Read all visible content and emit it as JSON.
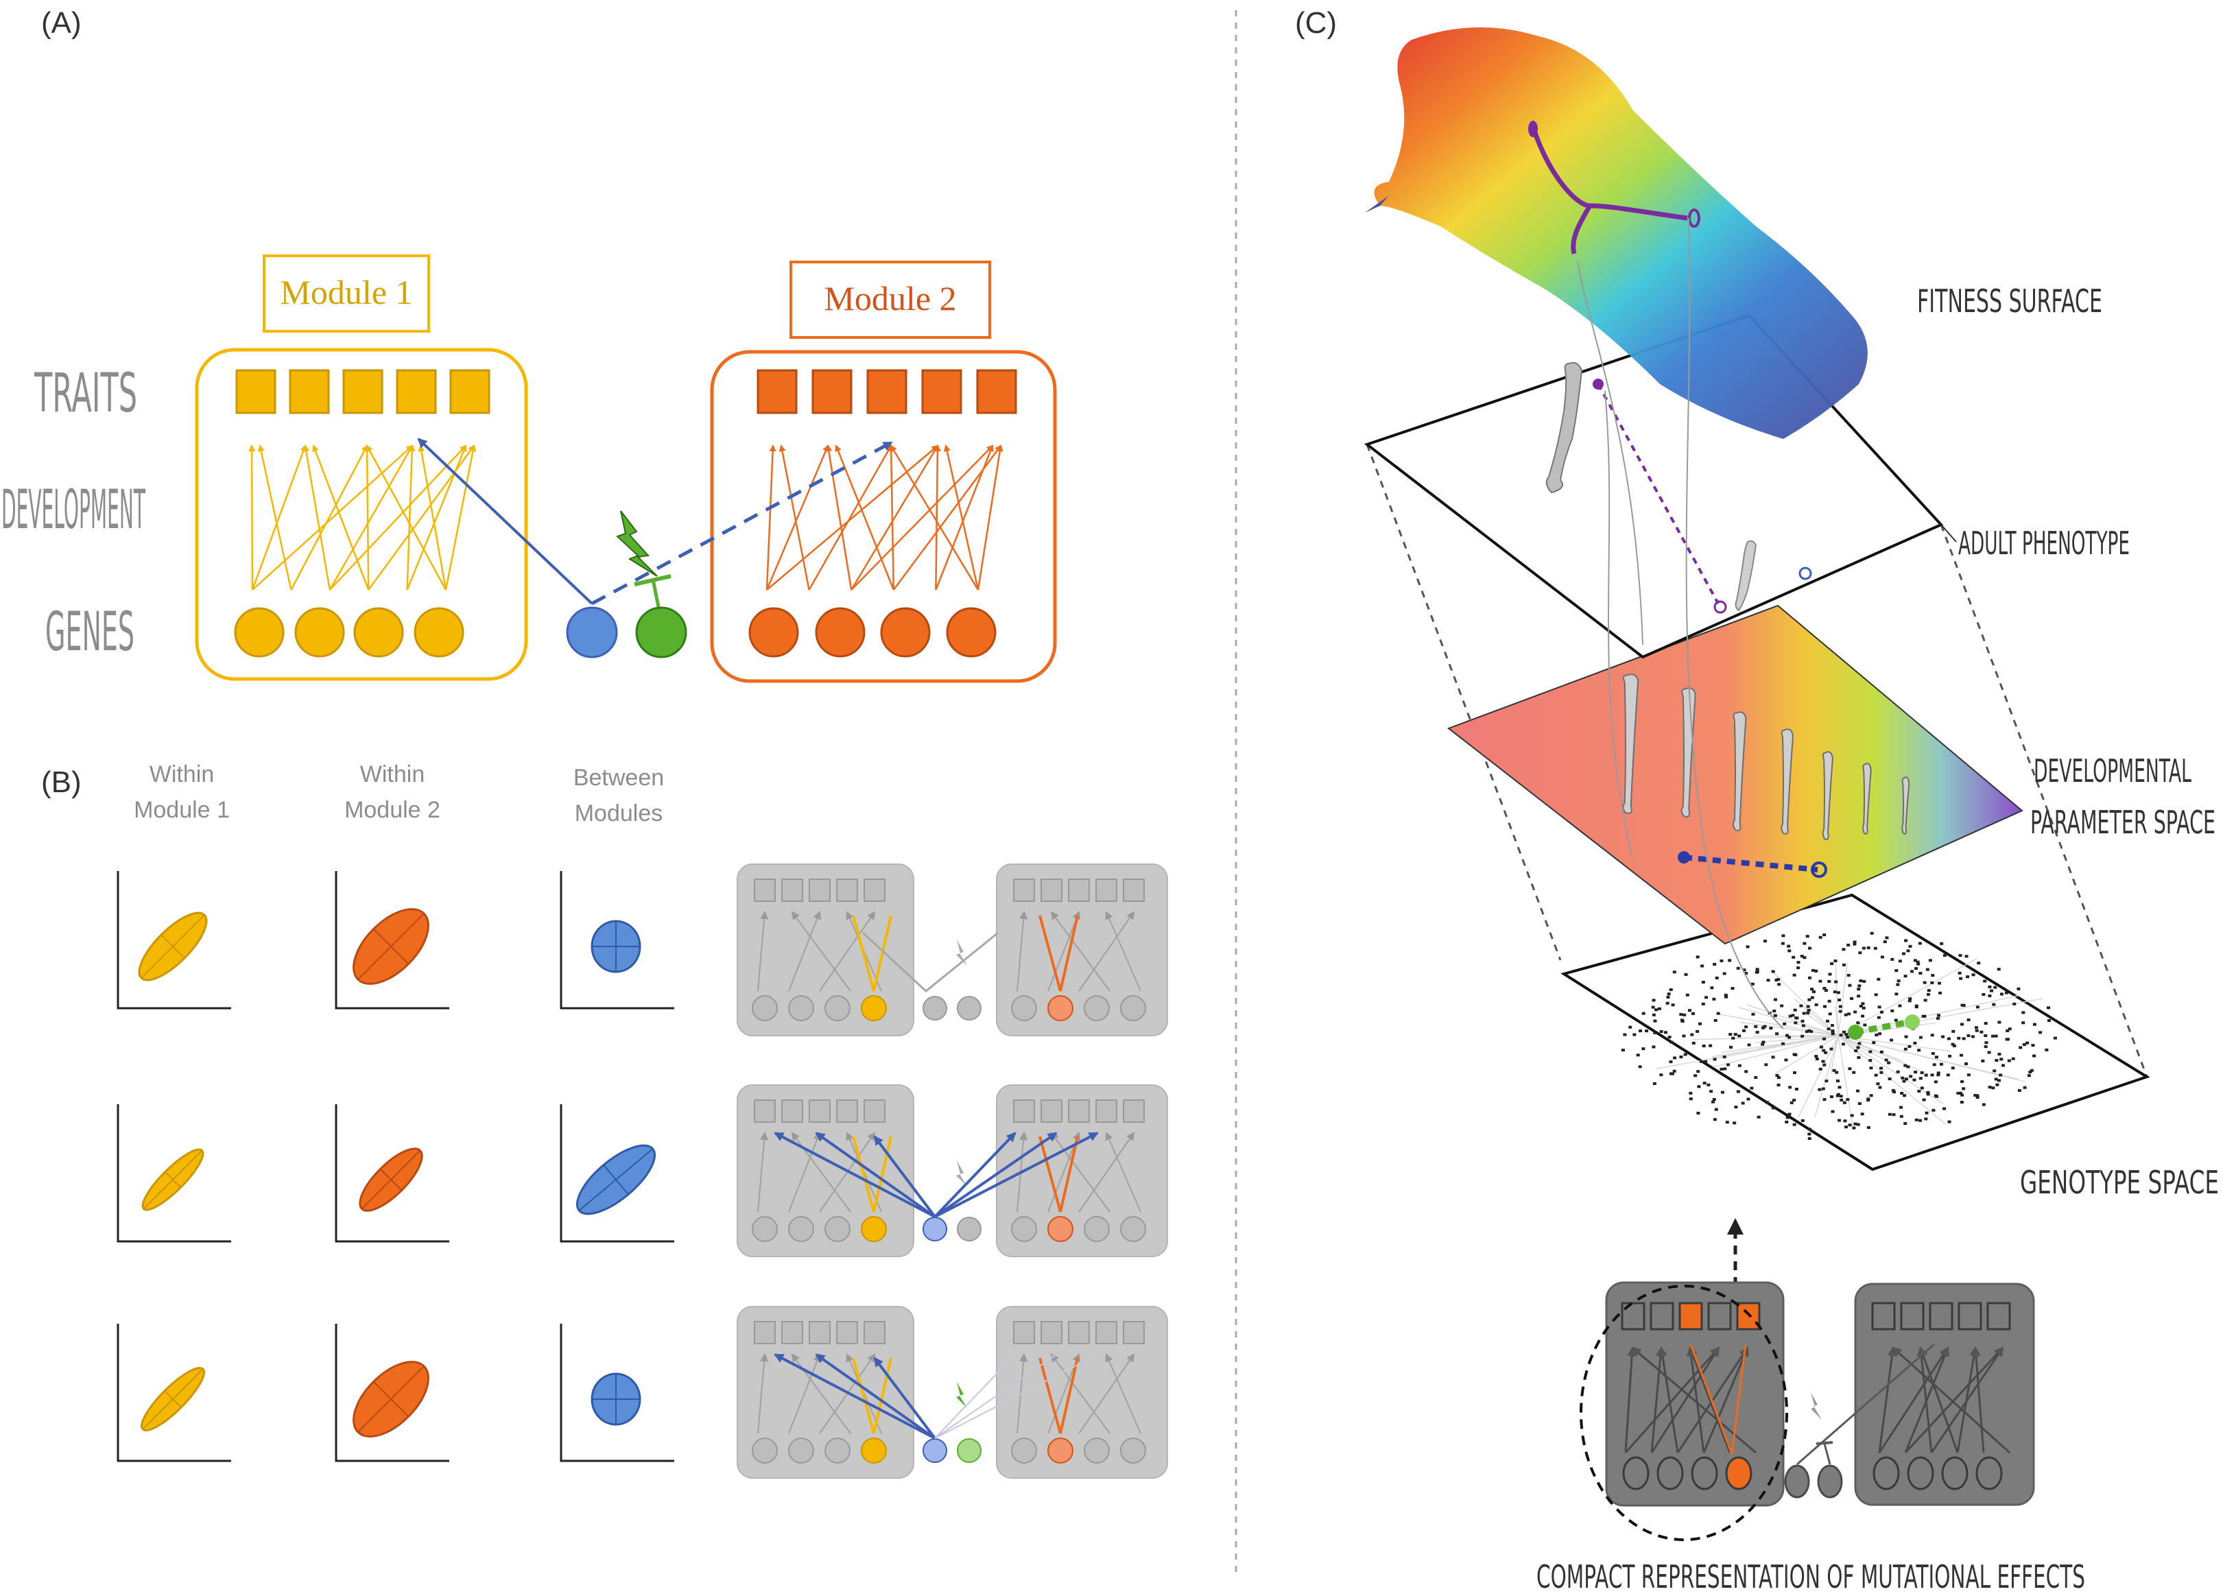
{
  "panels": {
    "a": "(A)",
    "b": "(B)",
    "c": "(C)"
  },
  "panel_a": {
    "module1": "Module 1",
    "module2": "Module 2",
    "row_traits": "TRAITS",
    "row_development": "DEVELOPMENT",
    "row_genes": "GENES"
  },
  "panel_b": {
    "col1_line1": "Within",
    "col1_line2": "Module 1",
    "col2_line1": "Within",
    "col2_line2": "Module 2",
    "col3_line1": "Between",
    "col3_line2": "Modules"
  },
  "panel_c": {
    "fitness": "FITNESS SURFACE",
    "adult": "ADULT PHENOTYPE",
    "dev_line1": "DEVELOPMENTAL",
    "dev_line2": "PARAMETER SPACE",
    "genotype": "GENOTYPE SPACE",
    "compact": "COMPACT REPRESENTATION OF MUTATIONAL EFFECTS"
  },
  "colors": {
    "module1": "#f5b800",
    "module2": "#ee6a1c",
    "regulator_blue": "#5b8ed6",
    "regulator_green": "#58b02d",
    "label_gray": "#8c8c8c",
    "mini_bg": "#c8c8c8",
    "compact_bg": "#7c7c7c"
  },
  "icons": [
    "lightning-bolt-icon",
    "inhibition-bar-icon",
    "bone-icon",
    "dashed-arrow-icon"
  ]
}
